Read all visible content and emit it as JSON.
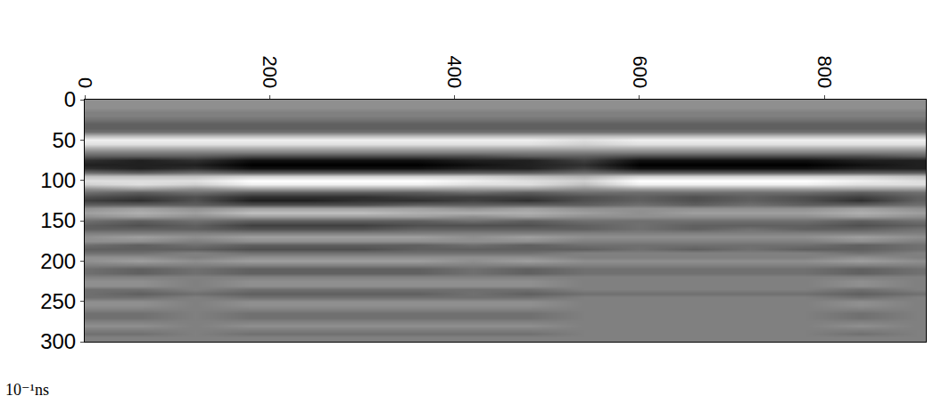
{
  "chart_data": {
    "type": "heatmap",
    "y_label": "10⁻¹ns",
    "x": [
      0,
      60,
      120,
      180,
      240,
      300,
      360,
      420,
      480,
      540,
      600,
      660,
      720,
      780,
      840,
      900
    ],
    "y": [
      0,
      5,
      10,
      15,
      20,
      25,
      30,
      35,
      40,
      45,
      50,
      55,
      60,
      65,
      70,
      75,
      80,
      85,
      90,
      95,
      100,
      105,
      110,
      115,
      120,
      125,
      130,
      135,
      140,
      145,
      150,
      155,
      160,
      165,
      170,
      175,
      180,
      185,
      190,
      195,
      200,
      205,
      210,
      215,
      220,
      225,
      230,
      235,
      240,
      245,
      250,
      255,
      260,
      265,
      270,
      275,
      280,
      285,
      290,
      295,
      300
    ],
    "z": [
      [
        1,
        1,
        1,
        1,
        1,
        1,
        1,
        1,
        1,
        1,
        1,
        1,
        1,
        1,
        1,
        1
      ],
      [
        1,
        1,
        1,
        1,
        1,
        1,
        1,
        1,
        1,
        1,
        1,
        1,
        1,
        1,
        1,
        1
      ],
      [
        1,
        1,
        1,
        1,
        1,
        1,
        1,
        1,
        1,
        1,
        1,
        1,
        1,
        1,
        1,
        1
      ],
      [
        0,
        0,
        0,
        0,
        0,
        0,
        0,
        0,
        0,
        0,
        0,
        0,
        0,
        0,
        0,
        0
      ],
      [
        0,
        0,
        0,
        0,
        0,
        0,
        0,
        0,
        0,
        0,
        0,
        0,
        0,
        0,
        0,
        0
      ],
      [
        -1,
        -1,
        -1,
        -1,
        -1,
        -1,
        -1,
        -1,
        -1,
        -1,
        -1,
        -1,
        -1,
        -1,
        -1,
        -1
      ],
      [
        -2,
        -2,
        -2,
        -2,
        -2,
        -2,
        -2,
        -2,
        -2,
        -2,
        -2,
        -2,
        -2,
        -2,
        -2,
        -2
      ],
      [
        -2,
        -2,
        -2,
        -2,
        -2,
        -2,
        -2,
        -2,
        -2,
        -2,
        -2,
        -2,
        -2,
        -2,
        -2,
        -2
      ],
      [
        -1,
        -1,
        -1,
        -1,
        -1,
        -1,
        -1,
        -1,
        -1,
        -1,
        -1,
        -1,
        -1,
        -1,
        -1,
        -1
      ],
      [
        4,
        4,
        4,
        4,
        4,
        4,
        4,
        4,
        4,
        4,
        4,
        4,
        4,
        4,
        4,
        4
      ],
      [
        7,
        7,
        7,
        7,
        7,
        7,
        7,
        7,
        7,
        6,
        7,
        7,
        7,
        7,
        7,
        7
      ],
      [
        6,
        6,
        6,
        6,
        6,
        6,
        6,
        6,
        6,
        5,
        6,
        6,
        6,
        6,
        6,
        6
      ],
      [
        3,
        3,
        3,
        3,
        3,
        3,
        3,
        3,
        3,
        3,
        3,
        3,
        3,
        3,
        3,
        3
      ],
      [
        0,
        0,
        0,
        0,
        0,
        0,
        0,
        0,
        0,
        0,
        0,
        0,
        0,
        0,
        0,
        0
      ],
      [
        -2,
        -2,
        -2,
        -3,
        -3,
        -3,
        -3,
        -3,
        -2,
        -2,
        -3,
        -3,
        -3,
        -3,
        -3,
        -2
      ],
      [
        -5,
        -6,
        -5,
        -7,
        -7,
        -7,
        -7,
        -6,
        -6,
        -4,
        -7,
        -7,
        -7,
        -7,
        -6,
        -6
      ],
      [
        -6,
        -6,
        -6,
        -8,
        -8,
        -8,
        -8,
        -7,
        -6,
        -5,
        -8,
        -8,
        -8,
        -8,
        -7,
        -6
      ],
      [
        -5,
        -6,
        -5,
        -7,
        -7,
        -7,
        -7,
        -6,
        -6,
        -4,
        -7,
        -7,
        -7,
        -7,
        -6,
        -6
      ],
      [
        -1,
        -2,
        -1,
        -2,
        -2,
        -2,
        -2,
        -2,
        -2,
        -1,
        -2,
        -2,
        -2,
        -2,
        -2,
        -2
      ],
      [
        4,
        4,
        4,
        5,
        5,
        5,
        5,
        5,
        4,
        3,
        5,
        5,
        5,
        5,
        5,
        4
      ],
      [
        6,
        6,
        6,
        8,
        8,
        8,
        8,
        7,
        6,
        5,
        8,
        8,
        8,
        8,
        7,
        6
      ],
      [
        5,
        6,
        5,
        7,
        7,
        7,
        7,
        6,
        6,
        4,
        7,
        7,
        7,
        7,
        6,
        6
      ],
      [
        1,
        2,
        1,
        2,
        2,
        2,
        2,
        2,
        2,
        1,
        2,
        2,
        2,
        2,
        2,
        2
      ],
      [
        -1,
        -2,
        -1,
        -2,
        -2,
        -2,
        -2,
        -1,
        -2,
        -1,
        -1,
        -1,
        -1,
        -1,
        -2,
        -1
      ],
      [
        -3,
        -4,
        -3,
        -5,
        -5,
        -5,
        -4,
        -4,
        -4,
        -3,
        -2,
        -3,
        -2,
        -3,
        -4,
        -2
      ],
      [
        -4,
        -5,
        -3,
        -6,
        -6,
        -5,
        -5,
        -4,
        -5,
        -3,
        -2,
        -3,
        -2,
        -3,
        -5,
        -2
      ],
      [
        -2,
        -2,
        -2,
        -3,
        -3,
        -3,
        -2,
        -2,
        -2,
        -2,
        -1,
        -2,
        -1,
        -2,
        -2,
        -1
      ],
      [
        1,
        2,
        1,
        2,
        2,
        2,
        2,
        1,
        2,
        1,
        1,
        1,
        1,
        1,
        2,
        1
      ],
      [
        2,
        3,
        2,
        4,
        4,
        4,
        3,
        3,
        3,
        2,
        1,
        2,
        2,
        2,
        3,
        2
      ],
      [
        1,
        2,
        1,
        2,
        2,
        2,
        2,
        1,
        2,
        1,
        1,
        1,
        1,
        1,
        2,
        1
      ],
      [
        -1,
        -2,
        -1,
        -2,
        -2,
        -2,
        -2,
        -1,
        -2,
        -1,
        -1,
        -1,
        -1,
        -1,
        -2,
        -1
      ],
      [
        -2,
        -3,
        -2,
        -4,
        -4,
        -4,
        -3,
        -3,
        -3,
        -2,
        -1,
        -2,
        -2,
        -2,
        -3,
        -2
      ],
      [
        -2,
        -2,
        -2,
        -3,
        -3,
        -3,
        -2,
        -2,
        -2,
        -2,
        -1,
        -2,
        -1,
        -2,
        -2,
        -1
      ],
      [
        0,
        0,
        0,
        0,
        0,
        0,
        0,
        0,
        0,
        0,
        0,
        0,
        0,
        0,
        0,
        0
      ],
      [
        1,
        2,
        1,
        2,
        2,
        2,
        2,
        1,
        2,
        1,
        1,
        1,
        1,
        1,
        2,
        1
      ],
      [
        1,
        1,
        0,
        1,
        1,
        1,
        1,
        1,
        1,
        0,
        0,
        0,
        0,
        0,
        1,
        0
      ],
      [
        -1,
        -2,
        -1,
        -2,
        -2,
        -2,
        -2,
        -1,
        -2,
        -1,
        -1,
        -1,
        -1,
        -1,
        -2,
        -1
      ],
      [
        -2,
        -2,
        -2,
        -3,
        -3,
        -3,
        -2,
        -2,
        -2,
        -2,
        -1,
        -2,
        -1,
        -2,
        -2,
        -1
      ],
      [
        -1,
        -1,
        0,
        -1,
        -1,
        -1,
        -1,
        -1,
        -1,
        0,
        0,
        0,
        0,
        0,
        -1,
        0
      ],
      [
        1,
        1,
        0,
        1,
        1,
        1,
        1,
        1,
        1,
        0,
        0,
        0,
        0,
        0,
        1,
        0
      ],
      [
        1,
        2,
        1,
        2,
        2,
        2,
        2,
        1,
        2,
        1,
        1,
        1,
        1,
        1,
        2,
        1
      ],
      [
        0,
        0,
        0,
        0,
        0,
        0,
        0,
        0,
        0,
        0,
        0,
        0,
        0,
        0,
        0,
        0
      ],
      [
        -1,
        -2,
        -1,
        -2,
        -2,
        -2,
        -2,
        -1,
        -2,
        -1,
        -1,
        -1,
        -1,
        -1,
        -2,
        -1
      ],
      [
        -1,
        -2,
        -1,
        -2,
        -2,
        -2,
        -2,
        -1,
        -2,
        -1,
        -1,
        -1,
        -1,
        -1,
        -2,
        -1
      ],
      [
        0,
        0,
        0,
        0,
        0,
        0,
        0,
        0,
        0,
        0,
        0,
        0,
        0,
        0,
        0,
        0
      ],
      [
        1,
        1,
        0,
        1,
        1,
        1,
        1,
        1,
        1,
        0,
        0,
        0,
        0,
        0,
        1,
        0
      ],
      [
        1,
        1,
        0,
        1,
        1,
        1,
        1,
        1,
        1,
        0,
        0,
        0,
        0,
        0,
        1,
        0
      ],
      [
        -1,
        -1,
        0,
        -1,
        -1,
        -1,
        -1,
        -1,
        -1,
        0,
        0,
        0,
        0,
        0,
        -1,
        0
      ],
      [
        -1,
        -2,
        -1,
        -2,
        -2,
        -2,
        -2,
        -1,
        -2,
        -1,
        -1,
        -1,
        -1,
        -1,
        -2,
        -1
      ],
      [
        -1,
        -1,
        0,
        -1,
        -1,
        -1,
        -1,
        -1,
        -1,
        0,
        0,
        0,
        0,
        0,
        -1,
        0
      ],
      [
        1,
        1,
        0,
        1,
        1,
        1,
        1,
        1,
        1,
        0,
        0,
        0,
        0,
        0,
        1,
        0
      ],
      [
        1,
        1,
        0,
        1,
        1,
        1,
        1,
        1,
        1,
        0,
        0,
        0,
        0,
        0,
        1,
        0
      ],
      [
        0,
        0,
        0,
        0,
        0,
        0,
        0,
        0,
        0,
        0,
        0,
        0,
        0,
        0,
        0,
        0
      ],
      [
        -1,
        -1,
        0,
        -1,
        -1,
        -1,
        -1,
        -1,
        -1,
        0,
        0,
        0,
        0,
        0,
        -1,
        0
      ],
      [
        -1,
        -1,
        0,
        -1,
        -1,
        -1,
        -1,
        -1,
        -1,
        0,
        0,
        0,
        0,
        0,
        -1,
        0
      ],
      [
        0,
        0,
        0,
        0,
        0,
        0,
        0,
        0,
        0,
        0,
        0,
        0,
        0,
        0,
        0,
        0
      ],
      [
        1,
        1,
        0,
        1,
        1,
        1,
        1,
        1,
        1,
        0,
        0,
        0,
        0,
        0,
        1,
        0
      ],
      [
        0,
        0,
        0,
        0,
        0,
        0,
        0,
        0,
        0,
        0,
        0,
        0,
        0,
        0,
        0,
        0
      ],
      [
        -1,
        -1,
        0,
        -1,
        -1,
        -1,
        -1,
        -1,
        -1,
        0,
        0,
        0,
        0,
        0,
        -1,
        0
      ],
      [
        0,
        0,
        0,
        0,
        0,
        0,
        0,
        0,
        0,
        0,
        0,
        0,
        0,
        0,
        0,
        0
      ],
      [
        0,
        0,
        0,
        0,
        0,
        0,
        0,
        0,
        0,
        0,
        0,
        0,
        0,
        0,
        0,
        0
      ]
    ],
    "zlim": [
      -8,
      8
    ],
    "xlim": [
      0,
      910
    ],
    "xticks": [
      0,
      200,
      400,
      600,
      800
    ],
    "ylim": [
      0,
      300
    ],
    "yticks": [
      0,
      50,
      100,
      150,
      200,
      250,
      300
    ],
    "grid": false
  }
}
